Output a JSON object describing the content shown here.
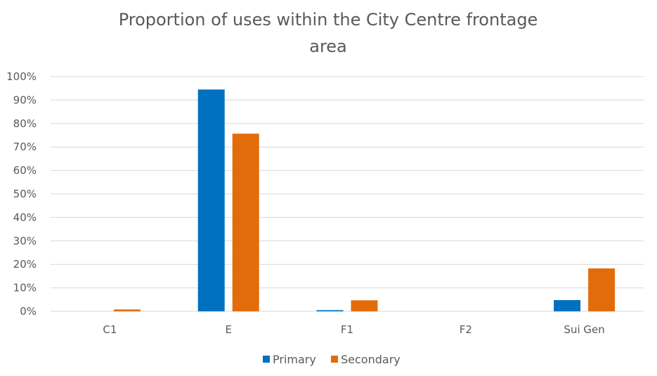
{
  "chart_data": {
    "type": "bar",
    "title_lines": [
      "Proportion of uses within the City Centre frontage",
      "area"
    ],
    "categories": [
      "C1",
      "E",
      "F1",
      "F2",
      "Sui Gen"
    ],
    "series": [
      {
        "name": "Primary",
        "color": "#0070C0",
        "values": [
          0,
          94.5,
          0.5,
          0,
          4.8
        ]
      },
      {
        "name": "Secondary",
        "color": "#E36C0A",
        "values": [
          0.8,
          75.7,
          4.7,
          0,
          18.3
        ]
      }
    ],
    "ylim": [
      0,
      100
    ],
    "y_ticks": [
      "0%",
      "10%",
      "20%",
      "30%",
      "40%",
      "50%",
      "60%",
      "70%",
      "80%",
      "90%",
      "100%"
    ],
    "grid": true,
    "legend_position": "bottom"
  }
}
